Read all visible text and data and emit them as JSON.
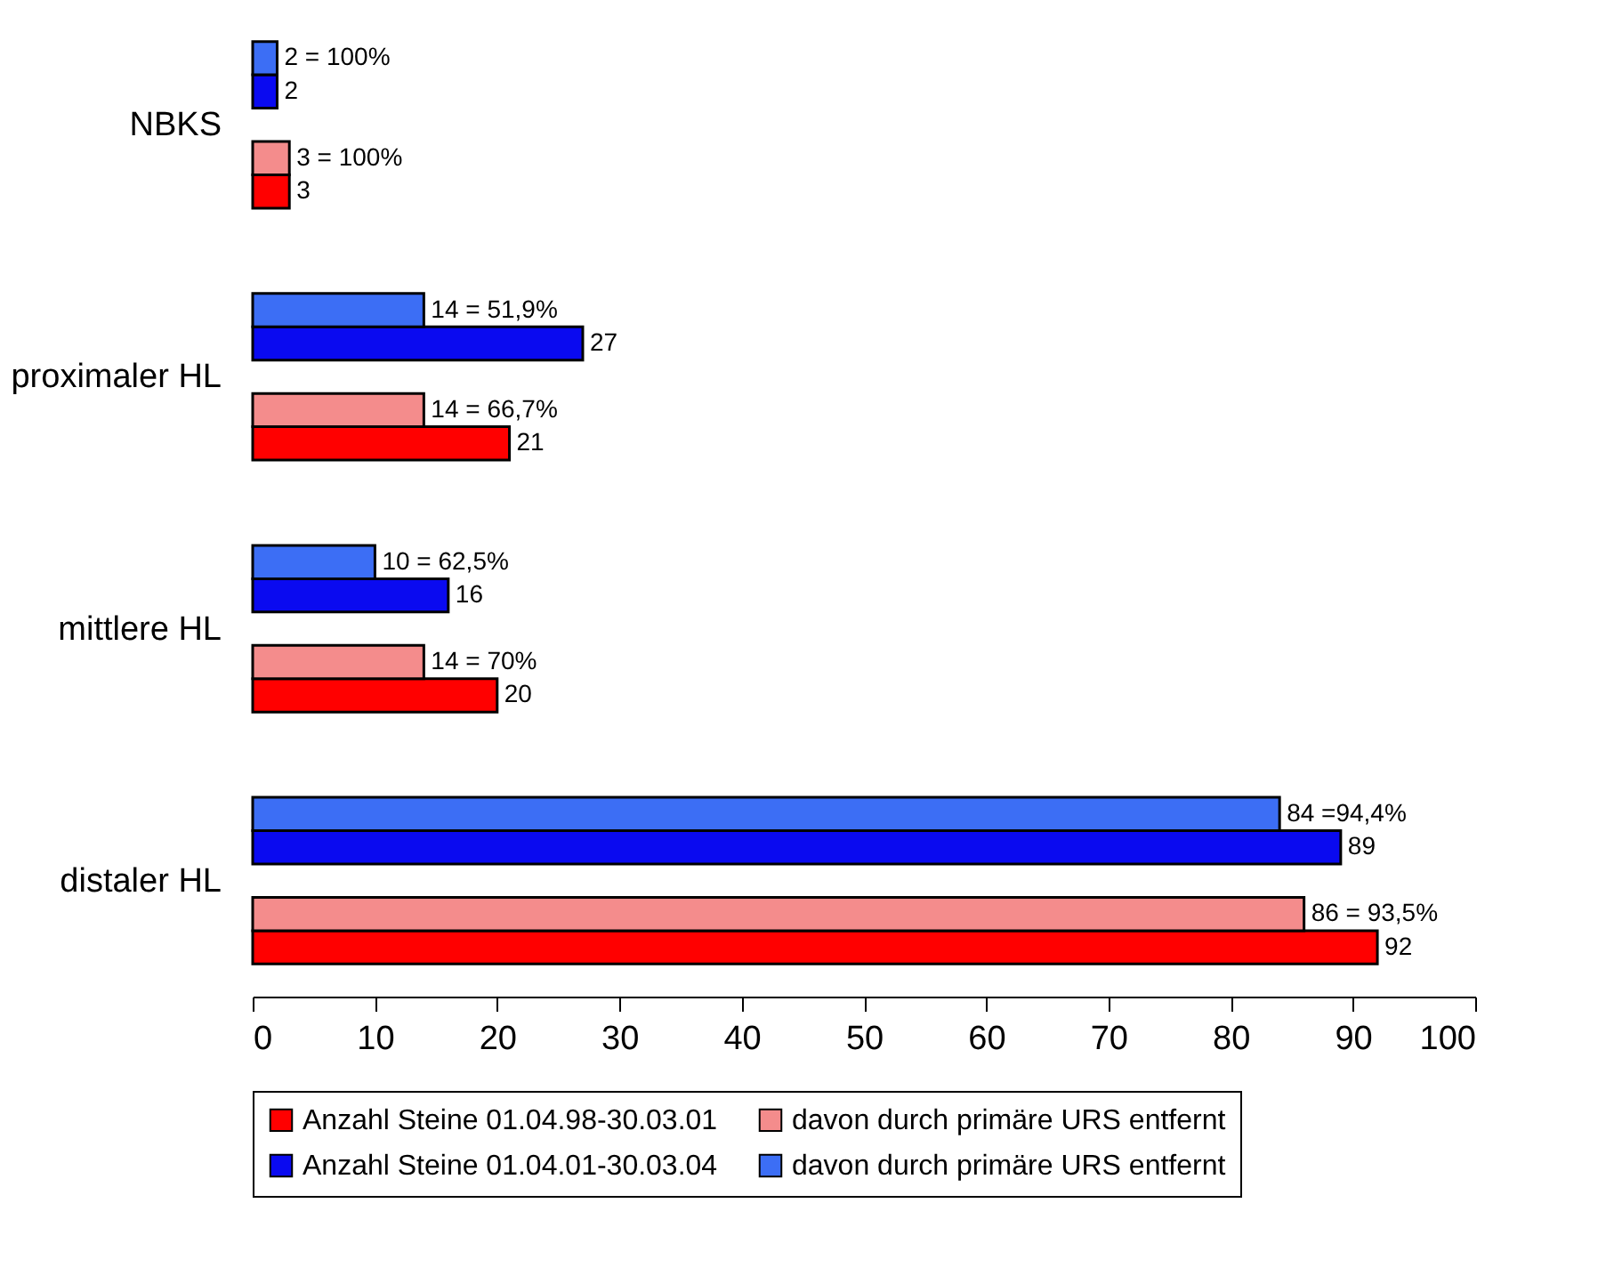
{
  "chart_data": {
    "type": "bar",
    "orientation": "horizontal",
    "categories": [
      "NBKS",
      "proximaler HL",
      "mittlere HL",
      "distaler HL"
    ],
    "series": [
      {
        "name": "Anzahl Steine 01.04.98-30.03.01",
        "color": "#ff0000",
        "values": [
          3,
          21,
          20,
          92
        ],
        "value_labels": [
          "3",
          "21",
          "20",
          "92"
        ]
      },
      {
        "name": "davon durch primäre URS entfernt",
        "color": "#f48c8c",
        "values": [
          3,
          14,
          14,
          86
        ],
        "value_labels": [
          "3 = 100%",
          "14 = 66,7%",
          "14 = 70%",
          "86 = 93,5%"
        ]
      },
      {
        "name": "Anzahl Steine 01.04.01-30.03.04",
        "color": "#0a0af0",
        "values": [
          2,
          27,
          16,
          89
        ],
        "value_labels": [
          "2",
          "27",
          "16",
          "89"
        ]
      },
      {
        "name": "davon durch primäre URS entfernt",
        "color": "#3c6ef5",
        "values": [
          2,
          14,
          10,
          84
        ],
        "value_labels": [
          "2 = 100%",
          "14 = 51,9%",
          "10 = 62,5%",
          "84 =94,4%"
        ]
      }
    ],
    "xlim": [
      0,
      100
    ],
    "xticks": [
      0,
      10,
      20,
      30,
      40,
      50,
      60,
      70,
      80,
      90,
      100
    ],
    "grid": false,
    "legend": "bottom"
  }
}
